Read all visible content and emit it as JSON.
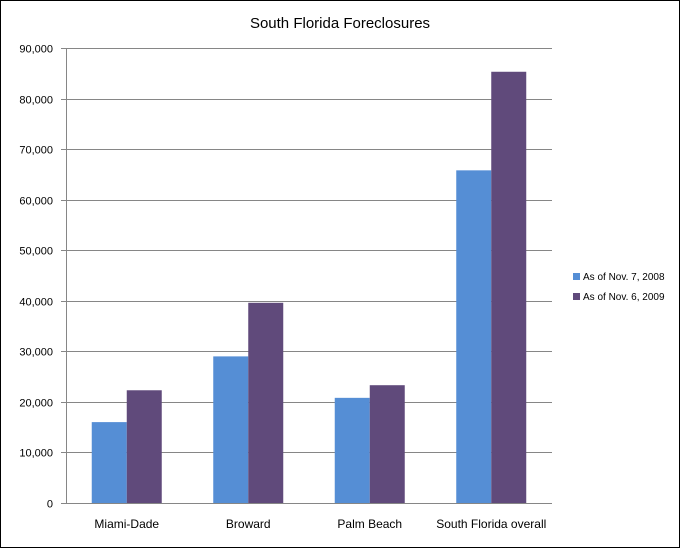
{
  "chart_data": {
    "type": "bar",
    "title": "South Florida Foreclosures",
    "xlabel": "",
    "ylabel": "",
    "categories": [
      "Miami-Dade",
      "Broward",
      "Palm Beach",
      "South Florida overall"
    ],
    "series": [
      {
        "name": "As of Nov. 7, 2008",
        "color": "#558ED5",
        "values": [
          16000,
          29000,
          20800,
          65800
        ]
      },
      {
        "name": "As of Nov. 6, 2009",
        "color": "#604A7B",
        "values": [
          22300,
          39600,
          23300,
          85300
        ]
      }
    ],
    "ylim": [
      0,
      90000
    ],
    "yticks": [
      0,
      10000,
      20000,
      30000,
      40000,
      50000,
      60000,
      70000,
      80000,
      90000
    ],
    "ytick_labels": [
      "0",
      "10,000",
      "20,000",
      "30,000",
      "40,000",
      "50,000",
      "60,000",
      "70,000",
      "80,000",
      "90,000"
    ],
    "grid": true,
    "legend_position": "right"
  }
}
